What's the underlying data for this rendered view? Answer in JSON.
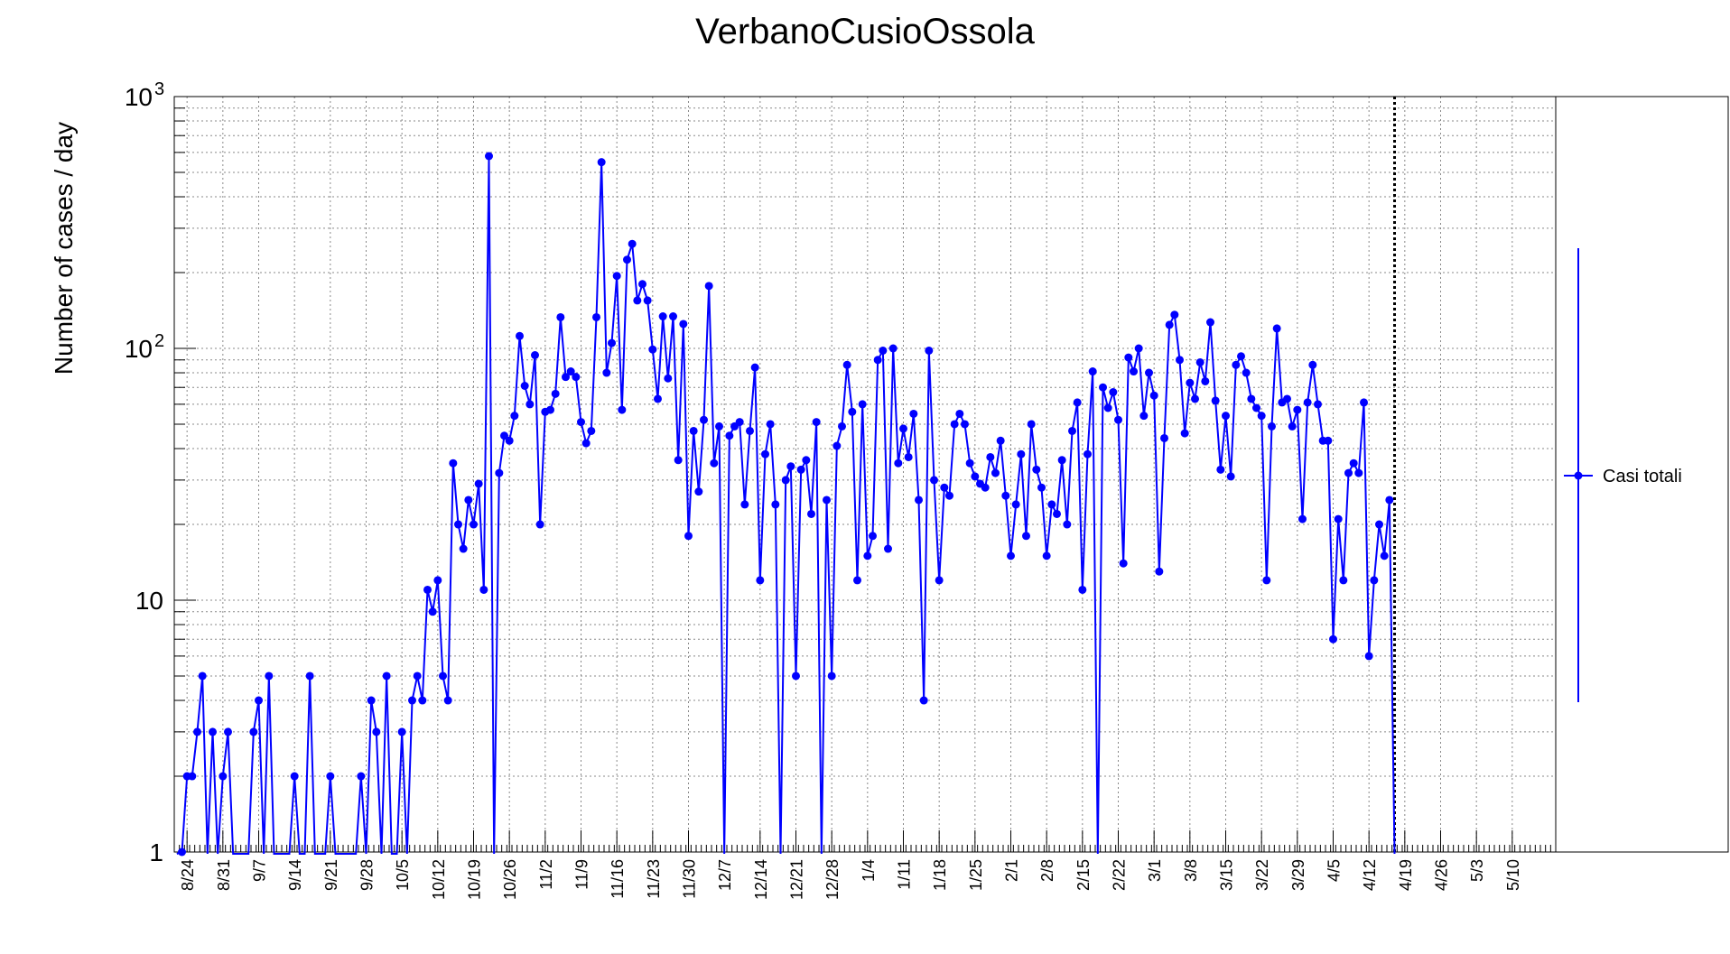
{
  "chart_data": {
    "type": "line",
    "title": "VerbanoCusioOssola",
    "xlabel": "",
    "ylabel": "Number of cases / day",
    "yscale": "log",
    "ylim": [
      1,
      1000
    ],
    "y_ticks": [
      {
        "value": 1,
        "label": "1"
      },
      {
        "value": 10,
        "label": "10"
      },
      {
        "value": 100,
        "label": "10",
        "exp": "2"
      },
      {
        "value": 1000,
        "label": "10",
        "exp": "3"
      }
    ],
    "x_start": "8/22",
    "x_days_shown": 270,
    "x_ticks": [
      "8/24",
      "8/31",
      "9/7",
      "9/14",
      "9/21",
      "9/28",
      "10/5",
      "10/12",
      "10/19",
      "10/26",
      "11/2",
      "11/9",
      "11/16",
      "11/23",
      "11/30",
      "12/7",
      "12/14",
      "12/21",
      "12/28",
      "1/4",
      "1/11",
      "1/18",
      "1/25",
      "2/1",
      "2/8",
      "2/15",
      "2/22",
      "3/1",
      "3/8",
      "3/15",
      "3/22",
      "3/29",
      "4/5",
      "4/12",
      "4/19",
      "4/26",
      "5/3",
      "5/10"
    ],
    "grid": true,
    "legend_position": "right",
    "today_marker": "4/17",
    "series": [
      {
        "name": "Casi totali",
        "color": "#0000ff",
        "start_date": "8/22",
        "values": [
          0,
          1,
          2,
          2,
          3,
          5,
          0,
          3,
          0,
          2,
          3,
          0,
          0,
          0,
          0,
          3,
          4,
          0,
          5,
          0,
          0,
          0,
          0,
          2,
          0,
          0,
          5,
          0,
          0,
          0,
          2,
          0,
          0,
          0,
          0,
          0,
          2,
          0,
          4,
          3,
          0,
          5,
          0,
          0,
          3,
          0,
          4,
          5,
          4,
          11,
          9,
          12,
          5,
          4,
          35,
          20,
          16,
          25,
          20,
          29,
          11,
          580,
          0,
          32,
          45,
          43,
          54,
          112,
          71,
          60,
          94,
          20,
          56,
          57,
          66,
          133,
          77,
          81,
          77,
          51,
          42,
          47,
          133,
          549,
          80,
          105,
          194,
          57,
          225,
          260,
          155,
          180,
          155,
          99,
          63,
          134,
          76,
          134,
          36,
          125,
          18,
          47,
          27,
          52,
          177,
          35,
          49,
          0,
          45,
          49,
          51,
          24,
          47,
          84,
          12,
          38,
          50,
          24,
          0,
          30,
          34,
          5,
          33,
          36,
          22,
          51,
          0,
          25,
          5,
          41,
          49,
          86,
          56,
          12,
          60,
          15,
          18,
          90,
          98,
          16,
          100,
          35,
          48,
          37,
          55,
          25,
          4,
          98,
          30,
          12,
          28,
          26,
          50,
          55,
          50,
          35,
          31,
          29,
          28,
          37,
          32,
          43,
          26,
          15,
          24,
          38,
          18,
          50,
          33,
          28,
          15,
          24,
          22,
          36,
          20,
          47,
          61,
          11,
          38,
          81,
          0,
          70,
          58,
          67,
          52,
          14,
          92,
          81,
          100,
          54,
          80,
          65,
          13,
          44,
          124,
          136,
          90,
          46,
          73,
          63,
          88,
          74,
          127,
          62,
          33,
          54,
          31,
          86,
          93,
          80,
          63,
          58,
          54,
          12,
          49,
          120,
          61,
          63,
          49,
          57,
          21,
          61,
          86,
          60,
          43,
          43,
          7,
          21,
          12,
          32,
          35,
          32,
          61,
          6,
          12,
          20,
          15,
          25,
          0
        ]
      }
    ]
  }
}
